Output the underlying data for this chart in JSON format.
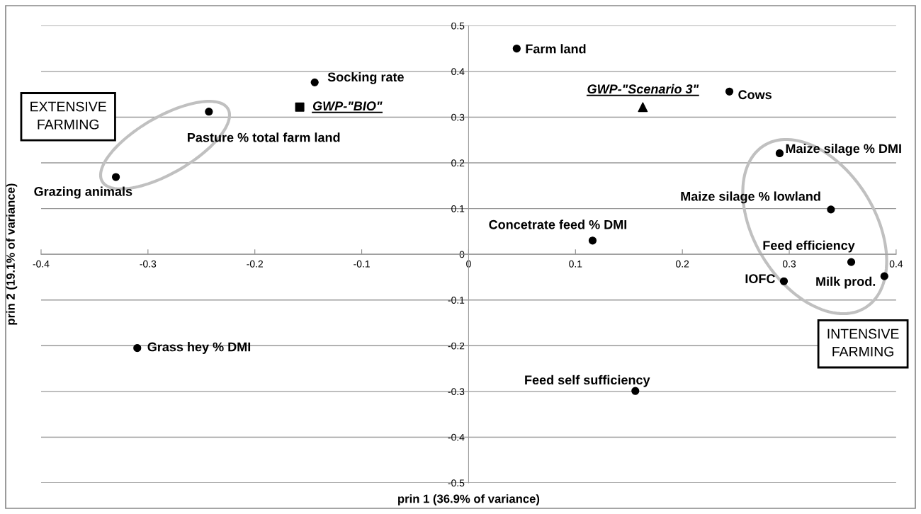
{
  "chart_data": {
    "type": "scatter",
    "xlabel": "prin 1 (36.9% of variance)",
    "ylabel": "prin 2 (19.1% of variance)",
    "xlim": [
      -0.4,
      0.4
    ],
    "xticks": [
      -0.4,
      -0.3,
      -0.2,
      -0.1,
      0,
      0.1,
      0.2,
      0.3,
      0.4
    ],
    "ylim": [
      -0.5,
      0.5
    ],
    "yticks": [
      -0.5,
      -0.4,
      -0.3,
      -0.2,
      -0.1,
      0,
      0.1,
      0.2,
      0.3,
      0.4,
      0.5
    ],
    "grid": "y",
    "legend": false,
    "marker": "circle",
    "series": [
      {
        "color": "#000000",
        "x": [
          -0.33,
          -0.144,
          0.045,
          -0.243,
          0.244,
          0.291,
          0.339,
          0.116,
          0.358,
          0.295,
          0.389,
          0.156,
          -0.31
        ],
        "values": [
          0.169,
          0.376,
          0.45,
          0.312,
          0.356,
          0.221,
          0.098,
          0.03,
          -0.017,
          -0.059,
          -0.048,
          -0.299,
          -0.205
        ]
      },
      {
        "name": "GWP-\"BIO\"",
        "color": "#000000",
        "marker": "square",
        "x": [
          -0.158
        ],
        "values": [
          0.322
        ]
      },
      {
        "name": "GWP-\"Scenario 3\"",
        "color": "#000000",
        "marker": "triangle",
        "x": [
          0.163
        ],
        "values": [
          0.322
        ]
      }
    ],
    "annotations": [
      {
        "text": "Grazing animals",
        "x": -0.33,
        "y": 0.169
      },
      {
        "text": "Socking rate",
        "x": -0.144,
        "y": 0.376
      },
      {
        "text": "Farm land",
        "x": 0.045,
        "y": 0.45
      },
      {
        "text": "Pasture % total farm land",
        "x": -0.243,
        "y": 0.312
      },
      {
        "text": "Cows",
        "x": 0.244,
        "y": 0.356
      },
      {
        "text": "Maize silage % DMI",
        "x": 0.291,
        "y": 0.221
      },
      {
        "text": "Maize silage % lowland",
        "x": 0.339,
        "y": 0.098
      },
      {
        "text": "Concetrate feed % DMI",
        "x": 0.116,
        "y": 0.03
      },
      {
        "text": "Feed efficiency",
        "x": 0.358,
        "y": -0.017
      },
      {
        "text": "IOFC",
        "x": 0.295,
        "y": -0.059
      },
      {
        "text": "Milk prod.",
        "x": 0.389,
        "y": -0.048
      },
      {
        "text": "Feed self sufficiency",
        "x": 0.156,
        "y": -0.299
      },
      {
        "text": "Grass hey % DMI",
        "x": -0.31,
        "y": -0.205
      },
      "EXTENSIVE\nFARMING",
      "INTENSIVE\nFARMING"
    ]
  }
}
